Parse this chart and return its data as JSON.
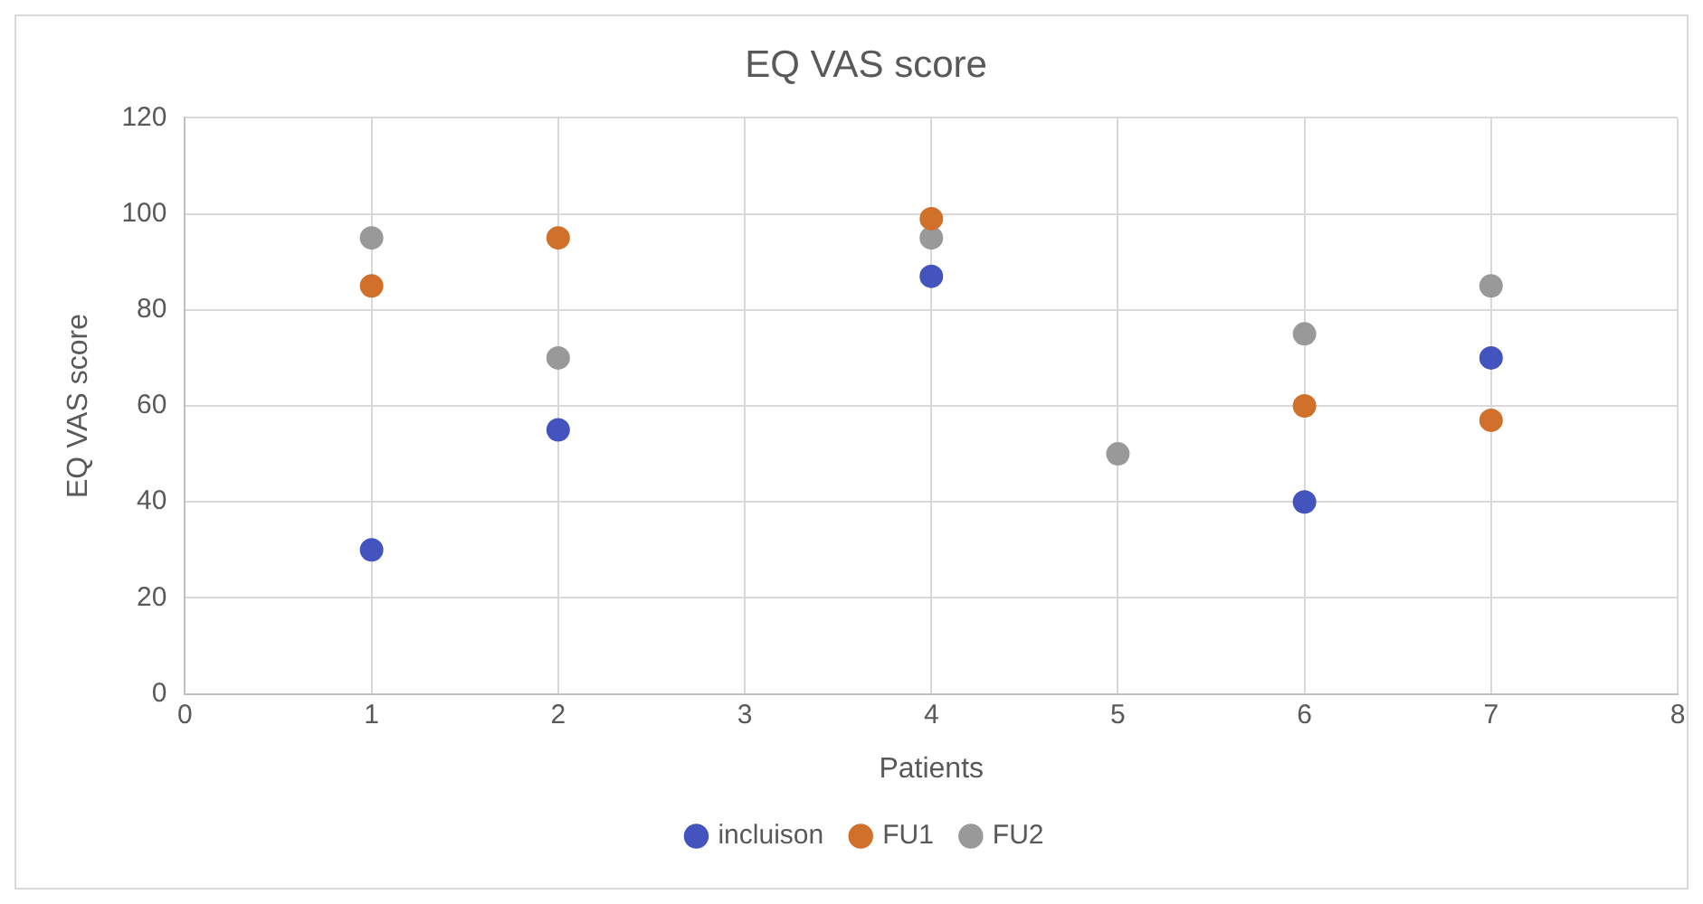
{
  "chart_data": {
    "type": "scatter",
    "title": "EQ VAS score",
    "xlabel": "Patients",
    "ylabel": "EQ VAS score",
    "xlim": [
      0,
      8
    ],
    "xticks": [
      0,
      1,
      2,
      3,
      4,
      5,
      6,
      7,
      8
    ],
    "ylim": [
      0,
      120
    ],
    "yticks": [
      0,
      20,
      40,
      60,
      80,
      100,
      120
    ],
    "grid": true,
    "legend": "bottom",
    "marker": "circle",
    "series": [
      {
        "name": "incluison",
        "color": "#4454be",
        "x": [
          1,
          2,
          4,
          6,
          7
        ],
        "values": [
          30,
          55,
          87,
          40,
          70
        ]
      },
      {
        "name": "FU1",
        "color": "#d0702a",
        "x": [
          1,
          2,
          4,
          6,
          7
        ],
        "values": [
          85,
          95,
          99,
          60,
          57
        ]
      },
      {
        "name": "FU2",
        "color": "#999999",
        "x": [
          1,
          2,
          4,
          5,
          6,
          7
        ],
        "values": [
          95,
          70,
          95,
          50,
          75,
          85
        ]
      }
    ]
  }
}
